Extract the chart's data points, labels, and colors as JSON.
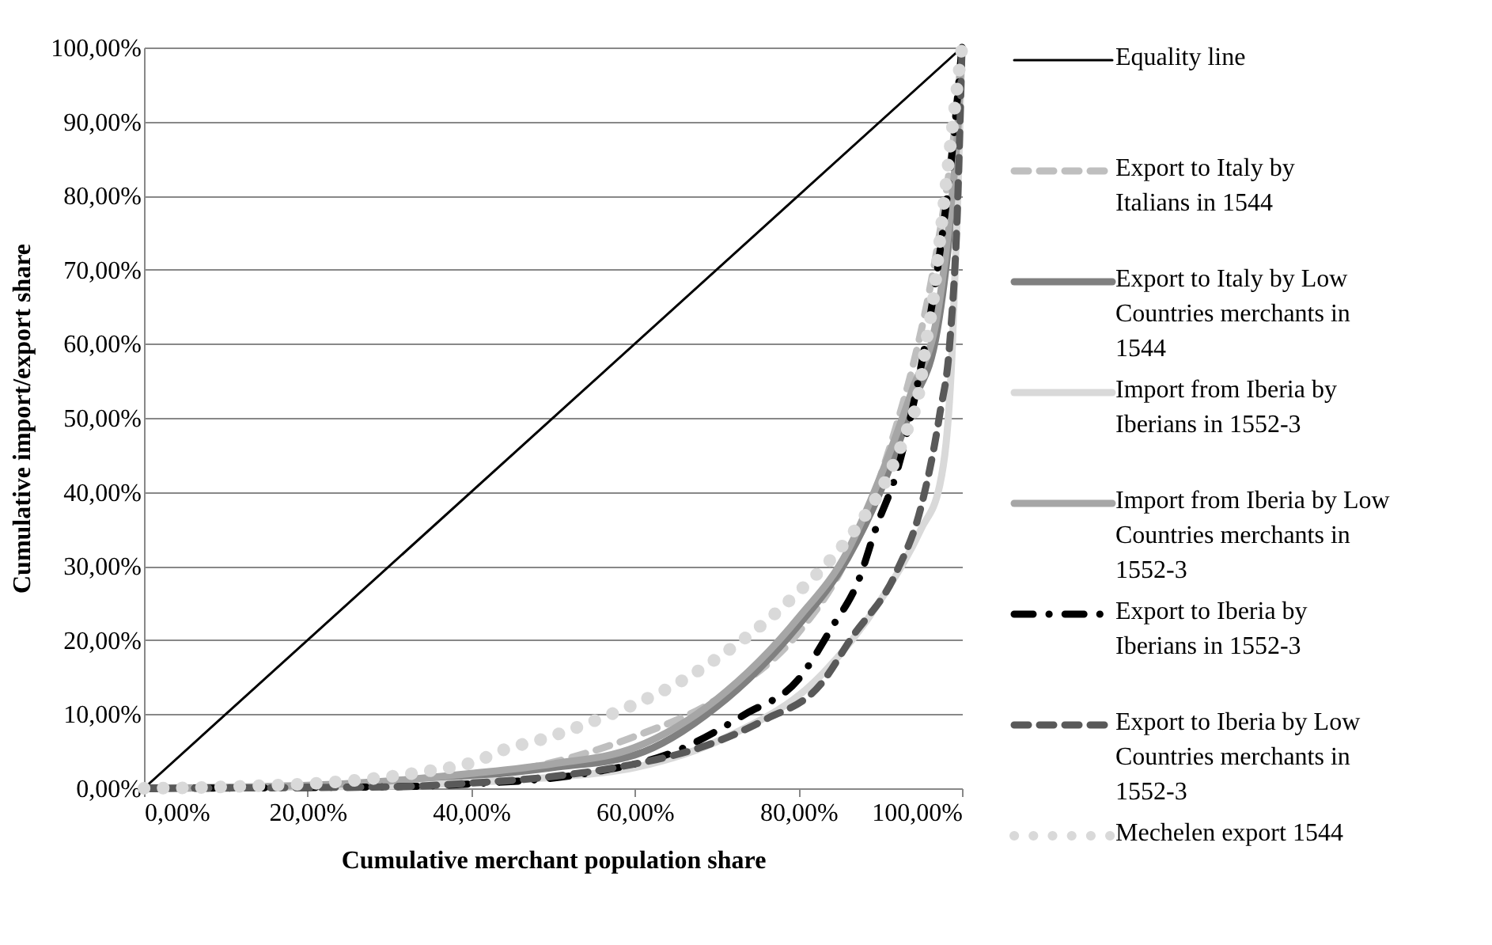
{
  "chart_data": {
    "type": "line",
    "xlabel": "Cumulative merchant population share",
    "ylabel": "Cumulative import/export share",
    "xlim": [
      0,
      100
    ],
    "ylim": [
      0,
      100
    ],
    "xticks": [
      {
        "value": 0,
        "label": "0,00%"
      },
      {
        "value": 20,
        "label": "20,00%"
      },
      {
        "value": 40,
        "label": "40,00%"
      },
      {
        "value": 60,
        "label": "60,00%"
      },
      {
        "value": 80,
        "label": "80,00%"
      },
      {
        "value": 100,
        "label": "100,00%"
      }
    ],
    "yticks": [
      {
        "value": 0,
        "label": "0,00%"
      },
      {
        "value": 10,
        "label": "10,00%"
      },
      {
        "value": 20,
        "label": "20,00%"
      },
      {
        "value": 30,
        "label": "30,00%"
      },
      {
        "value": 40,
        "label": "40,00%"
      },
      {
        "value": 50,
        "label": "50,00%"
      },
      {
        "value": 60,
        "label": "60,00%"
      },
      {
        "value": 70,
        "label": "70,00%"
      },
      {
        "value": 80,
        "label": "80,00%"
      },
      {
        "value": 90,
        "label": "90,00%"
      },
      {
        "value": 100,
        "label": "100,00%"
      }
    ],
    "grid": "y",
    "legend": "right",
    "marker": "none",
    "series": [
      {
        "name": "Equality line",
        "color": "#000000",
        "line_style": "solid",
        "x": [
          0,
          100
        ],
        "values": [
          0,
          100
        ]
      },
      {
        "name": "Export to Italy by Italians in 1544",
        "color": "#bfbfbf",
        "line_style": "dashed",
        "x": [
          0,
          30,
          40,
          50,
          60,
          70,
          80,
          85,
          88,
          90,
          92,
          94,
          96,
          98,
          99,
          100
        ],
        "values": [
          0,
          0.5,
          1.5,
          3.5,
          7,
          12,
          21,
          29,
          36,
          42,
          49,
          57,
          67,
          80,
          88,
          100
        ]
      },
      {
        "name": "Export to Italy by Low Countries merchants in 1544",
        "color": "#808080",
        "line_style": "solid",
        "x": [
          0,
          20,
          30,
          40,
          50,
          60,
          70,
          80,
          86,
          90,
          94,
          97,
          98.5,
          99.5,
          100
        ],
        "values": [
          0,
          0.3,
          0.8,
          1.6,
          2.8,
          4.5,
          11,
          22,
          31,
          40,
          52,
          62,
          75,
          88,
          100
        ]
      },
      {
        "name": "Import from Iberia by Iberians in 1552-3",
        "color": "#d9d9d9",
        "line_style": "solid",
        "x": [
          0,
          30,
          40,
          50,
          60,
          71,
          83,
          90.4,
          95,
          97.3,
          98.8,
          99.5,
          100
        ],
        "values": [
          0,
          0.3,
          0.8,
          1.5,
          2.8,
          6.8,
          15.5,
          26,
          35,
          41,
          59,
          80,
          100
        ]
      },
      {
        "name": "Import from Iberia by Low Countries merchants in 1552-3",
        "color": "#a6a6a6",
        "line_style": "solid",
        "x": [
          0,
          20,
          30,
          40,
          50,
          60,
          70,
          80,
          86,
          90,
          94,
          97,
          98.5,
          99.5,
          100
        ],
        "values": [
          0,
          0.4,
          1,
          2,
          3.3,
          5.5,
          12,
          23,
          32,
          42,
          54,
          64,
          77,
          89,
          100
        ]
      },
      {
        "name": "Export to Iberia by Iberians in 1552-3",
        "color": "#000000",
        "line_style": "dashdot",
        "x": [
          0,
          30,
          40,
          54,
          65,
          73.5,
          80,
          84.2,
          87.3,
          89.6,
          91.9,
          95,
          97,
          99,
          100
        ],
        "values": [
          0,
          0.2,
          0.6,
          2,
          5,
          10,
          14.7,
          21.9,
          27.9,
          35.5,
          42.2,
          57,
          70,
          88,
          100
        ]
      },
      {
        "name": "Export to Iberia by Low Countries merchants in 1552-3",
        "color": "#595959",
        "line_style": "dashed",
        "x": [
          0,
          30,
          40,
          50,
          59.6,
          68,
          75.8,
          82.7,
          86.5,
          91.9,
          95,
          97.3,
          98.5,
          99.5,
          100
        ],
        "values": [
          0,
          0.2,
          0.7,
          1.6,
          3.2,
          5.5,
          9.2,
          14,
          20.3,
          29,
          38,
          50.6,
          60,
          80,
          100
        ]
      },
      {
        "name": "Mechelen export 1544",
        "color": "#d9d9d9",
        "line_style": "dotted",
        "x": [
          0,
          6.4,
          13,
          20,
          27,
          34,
          41,
          43.5,
          49.2,
          54.8,
          60.5,
          65.9,
          70.9,
          75.8,
          80.2,
          84.2,
          87.7,
          90.8,
          93.1,
          94.8,
          95.6,
          96.5,
          97.2,
          97.8,
          98.5,
          100
        ],
        "values": [
          0,
          0.1,
          0.3,
          0.6,
          1.2,
          2.2,
          3.8,
          5.0,
          6.8,
          9.0,
          11.6,
          14.6,
          18.2,
          22.3,
          26.7,
          31.2,
          36.1,
          41.8,
          47.8,
          53.8,
          60.0,
          66,
          73,
          79,
          86,
          100
        ]
      }
    ]
  }
}
